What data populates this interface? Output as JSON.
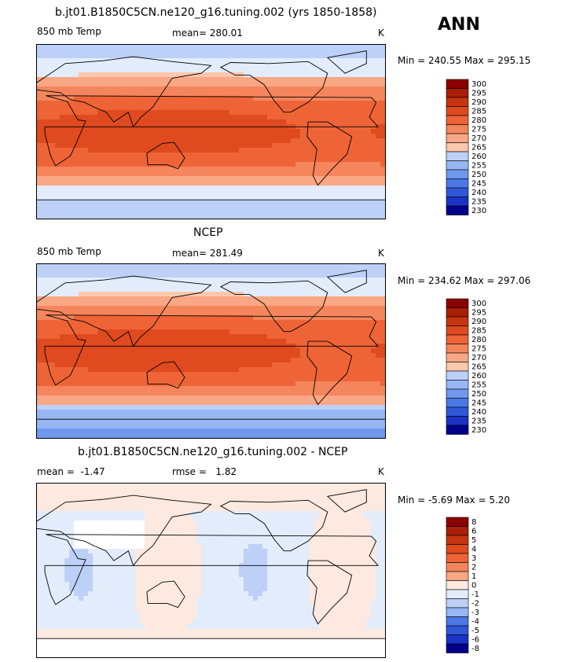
{
  "season": "ANN",
  "palette_hex": [
    "#00008b",
    "#1a33c6",
    "#2f57d8",
    "#4a78e6",
    "#6f97ee",
    "#97b6f4",
    "#bdd0f8",
    "#e3ecfb",
    "#fde9df",
    "#fcc8ad",
    "#f9a784",
    "#f5855c",
    "#ee6437",
    "#e04a1f",
    "#c73410",
    "#a81e06",
    "#8b0000"
  ],
  "land_hex": "#ffffff",
  "chart_data": [
    {
      "type": "heatmap",
      "title": "b.jt01.B1850C5CN.ne120_g16.tuning.002 (yrs 1850-1858)",
      "variable": "850 mb Temp",
      "mean_label": "mean=",
      "mean": "280.01",
      "units": "K",
      "min_label": "Min = 240.55 Max = 295.15",
      "min": 240.55,
      "max": 295.15,
      "levels": [
        "300",
        "295",
        "290",
        "285",
        "280",
        "275",
        "270",
        "265",
        "260",
        "255",
        "250",
        "245",
        "240",
        "235",
        "230"
      ],
      "level_values": [
        300,
        295,
        290,
        285,
        280,
        275,
        270,
        265,
        260,
        255,
        250,
        245,
        240,
        235,
        230
      ],
      "has_masked_land": true,
      "kind": "temp"
    },
    {
      "type": "heatmap",
      "title": "NCEP",
      "variable": "850 mb Temp",
      "mean_label": "mean=",
      "mean": "281.49",
      "units": "K",
      "min_label": "Min = 234.62 Max = 297.06",
      "min": 234.62,
      "max": 297.06,
      "levels": [
        "300",
        "295",
        "290",
        "285",
        "280",
        "275",
        "270",
        "265",
        "260",
        "255",
        "250",
        "245",
        "240",
        "235",
        "230"
      ],
      "level_values": [
        300,
        295,
        290,
        285,
        280,
        275,
        270,
        265,
        260,
        255,
        250,
        245,
        240,
        235,
        230
      ],
      "has_masked_land": false,
      "kind": "temp"
    },
    {
      "type": "heatmap",
      "title": "b.jt01.B1850C5CN.ne120_g16.tuning.002 - NCEP",
      "variable": "mean =",
      "mean_label": "",
      "mean": "-1.47",
      "rmse_label": "rmse =",
      "rmse": "1.82",
      "units": "K",
      "min_label": "Min =  -5.69 Max =   5.20",
      "min": -5.69,
      "max": 5.2,
      "levels": [
        "8",
        "6",
        "5",
        "4",
        "3",
        "2",
        "1",
        "0",
        "-1",
        "-2",
        "-3",
        "-4",
        "-5",
        "-6",
        "-8"
      ],
      "level_values": [
        8,
        6,
        5,
        4,
        3,
        2,
        1,
        0,
        -1,
        -2,
        -3,
        -4,
        -5,
        -6,
        -8
      ],
      "has_masked_land": true,
      "kind": "diff"
    }
  ]
}
